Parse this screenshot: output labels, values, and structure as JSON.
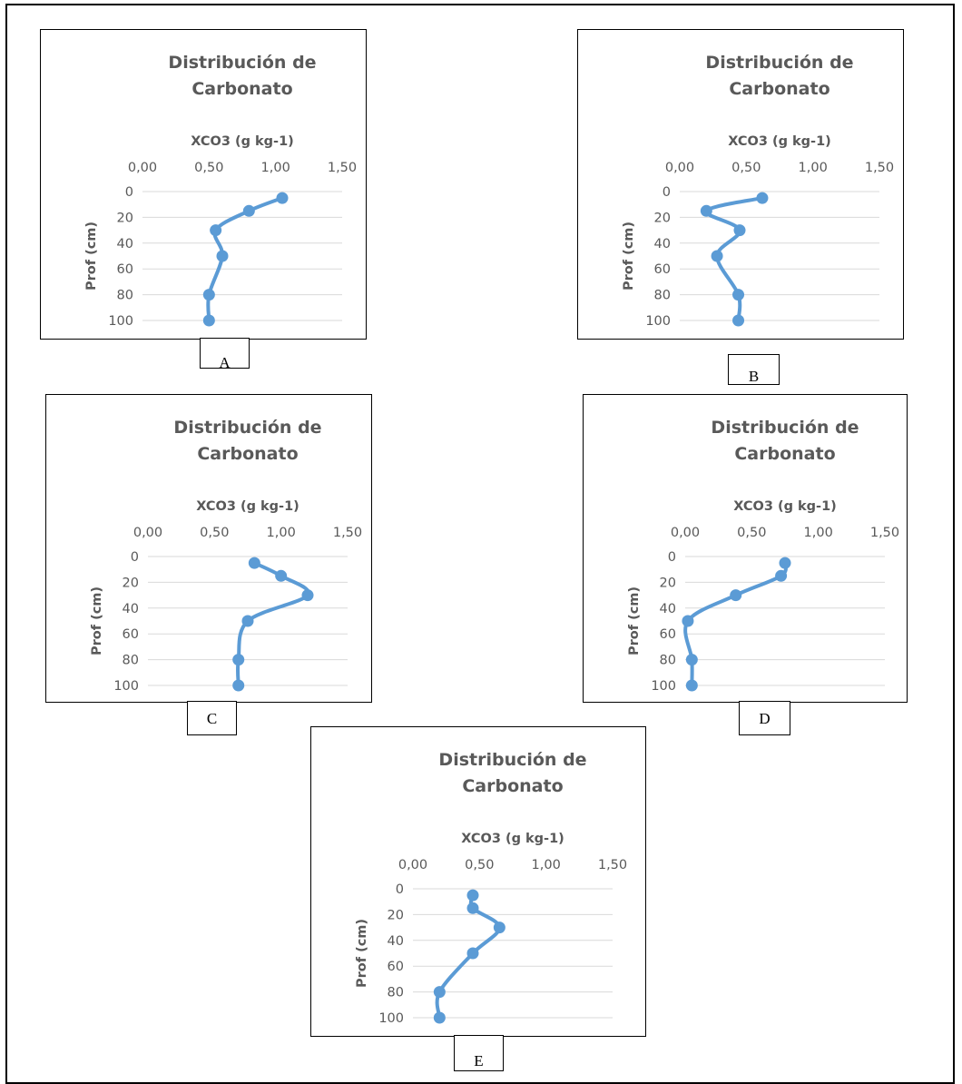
{
  "chart_data": [
    {
      "panel": "A",
      "type": "line",
      "title": "Distribución de Carbonato",
      "title_lines": [
        "Distribución de",
        "Carbonato"
      ],
      "xlabel": "XCO3 (g kg-1)",
      "ylabel": "Prof (cm)",
      "xlim": [
        0,
        1.5
      ],
      "ylim": [
        0,
        100
      ],
      "y_inverted": true,
      "x_axis_position": "top",
      "x_tick_labels": [
        "0,00",
        "0,50",
        "1,00",
        "1,50"
      ],
      "y_tick_labels": [
        "0",
        "20",
        "40",
        "60",
        "80",
        "100"
      ],
      "grid": "horizontal",
      "legend": "none",
      "series": [
        {
          "x": [
            1.05,
            0.8,
            0.55,
            0.6,
            0.5,
            0.5
          ],
          "y": [
            5,
            15,
            30,
            50,
            80,
            100
          ],
          "color": "#5b9bd5"
        }
      ]
    },
    {
      "panel": "B",
      "type": "line",
      "title": "Distribución de Carbonato",
      "title_lines": [
        "Distribución de",
        "Carbonato"
      ],
      "xlabel": "XCO3 (g kg-1)",
      "ylabel": "Prof (cm)",
      "xlim": [
        0,
        1.5
      ],
      "ylim": [
        0,
        100
      ],
      "y_inverted": true,
      "x_axis_position": "top",
      "x_tick_labels": [
        "0,00",
        "0,50",
        "1,00",
        "1,50"
      ],
      "y_tick_labels": [
        "0",
        "20",
        "40",
        "60",
        "80",
        "100"
      ],
      "grid": "horizontal",
      "legend": "none",
      "series": [
        {
          "x": [
            0.62,
            0.2,
            0.45,
            0.28,
            0.44,
            0.44
          ],
          "y": [
            5,
            15,
            30,
            50,
            80,
            100
          ],
          "color": "#5b9bd5"
        }
      ]
    },
    {
      "panel": "C",
      "type": "line",
      "title": "Distribución de Carbonato",
      "title_lines": [
        "Distribución de",
        "Carbonato"
      ],
      "xlabel": "XCO3 (g kg-1)",
      "ylabel": "Prof (cm)",
      "xlim": [
        0,
        1.5
      ],
      "ylim": [
        0,
        100
      ],
      "y_inverted": true,
      "x_axis_position": "top",
      "x_tick_labels": [
        "0,00",
        "0,50",
        "1,00",
        "1,50"
      ],
      "y_tick_labels": [
        "0",
        "20",
        "40",
        "60",
        "80",
        "100"
      ],
      "grid": "horizontal",
      "legend": "none",
      "series": [
        {
          "x": [
            0.8,
            1.0,
            1.2,
            0.75,
            0.68,
            0.68
          ],
          "y": [
            5,
            15,
            30,
            50,
            80,
            100
          ],
          "color": "#5b9bd5"
        }
      ]
    },
    {
      "panel": "D",
      "type": "line",
      "title": "Distribución de Carbonato",
      "title_lines": [
        "Distribución de",
        "Carbonato"
      ],
      "xlabel": "XCO3 (g kg-1)",
      "ylabel": "Prof (cm)",
      "xlim": [
        0,
        1.5
      ],
      "ylim": [
        0,
        100
      ],
      "y_inverted": true,
      "x_axis_position": "top",
      "x_tick_labels": [
        "0,00",
        "0,50",
        "1,00",
        "1,50"
      ],
      "y_tick_labels": [
        "0",
        "20",
        "40",
        "60",
        "80",
        "100"
      ],
      "grid": "horizontal",
      "legend": "none",
      "series": [
        {
          "x": [
            0.75,
            0.72,
            0.38,
            0.02,
            0.05,
            0.05
          ],
          "y": [
            5,
            15,
            30,
            50,
            80,
            100
          ],
          "color": "#5b9bd5"
        }
      ]
    },
    {
      "panel": "E",
      "type": "line",
      "title": "Distribución de Carbonato",
      "title_lines": [
        "Distribución de",
        "Carbonato"
      ],
      "xlabel": "XCO3 (g kg-1)",
      "ylabel": "Prof (cm)",
      "xlim": [
        0,
        1.5
      ],
      "ylim": [
        0,
        100
      ],
      "y_inverted": true,
      "x_axis_position": "top",
      "x_tick_labels": [
        "0,00",
        "0,50",
        "1,00",
        "1,50"
      ],
      "y_tick_labels": [
        "0",
        "20",
        "40",
        "60",
        "80",
        "100"
      ],
      "grid": "horizontal",
      "legend": "none",
      "series": [
        {
          "x": [
            0.45,
            0.45,
            0.65,
            0.45,
            0.2,
            0.2
          ],
          "y": [
            5,
            15,
            30,
            50,
            80,
            100
          ],
          "color": "#5b9bd5"
        }
      ]
    }
  ],
  "panel_labels": {
    "A": "A",
    "B": "B",
    "C": "C",
    "D": "D",
    "E": "E"
  }
}
